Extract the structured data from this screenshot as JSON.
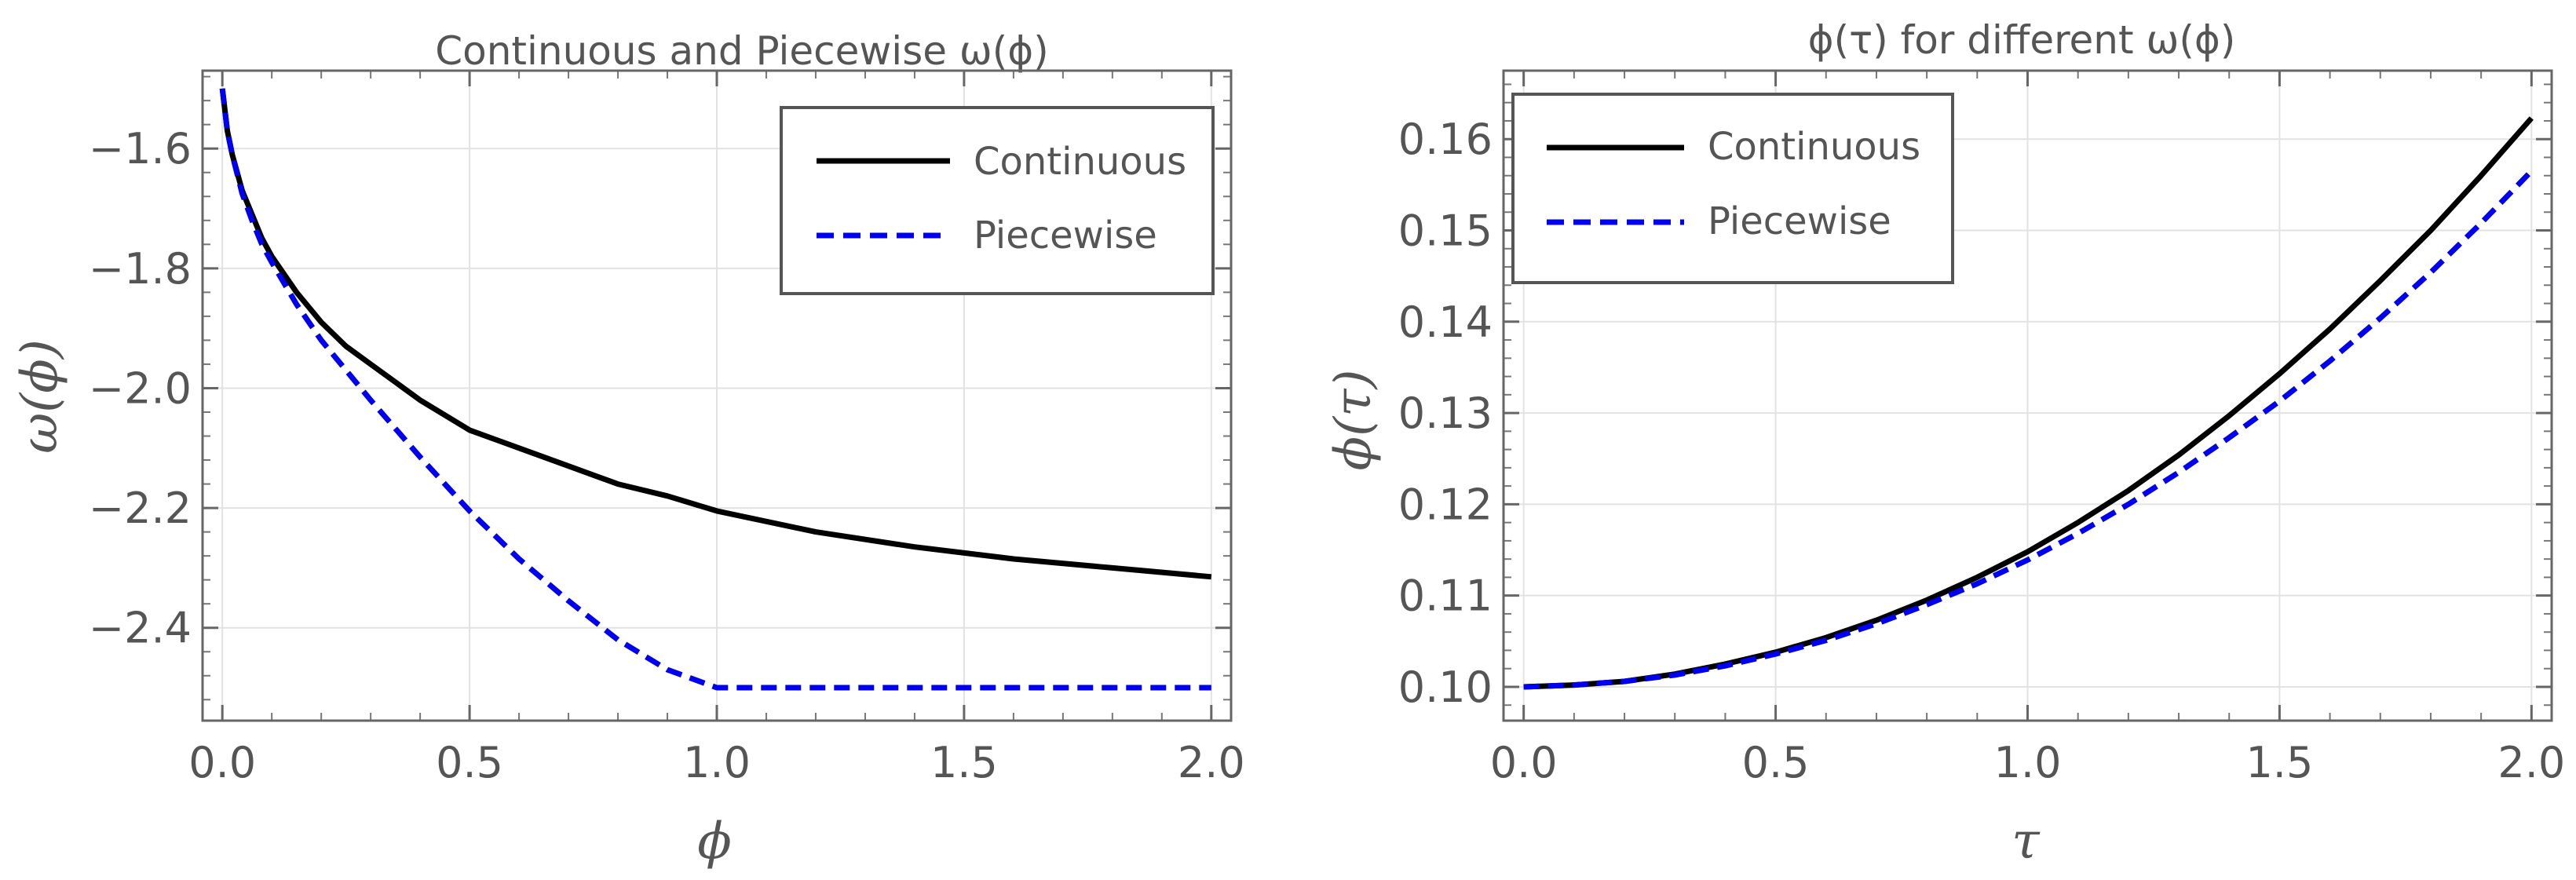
{
  "chart_data": [
    {
      "type": "line",
      "title": "Continuous and Piecewise ω(ϕ)",
      "xlabel": "ϕ",
      "ylabel": "ω(ϕ)",
      "xlim": [
        -0.04,
        2.04
      ],
      "ylim": [
        -2.555,
        -1.47
      ],
      "xticks": [
        0.0,
        0.5,
        1.0,
        1.5,
        2.0
      ],
      "xtick_labels": [
        "0.0",
        "0.5",
        "1.0",
        "1.5",
        "2.0"
      ],
      "yticks": [
        -1.6,
        -1.8,
        -2.0,
        -2.2,
        -2.4
      ],
      "ytick_labels": [
        "−1.6",
        "−1.8",
        "−2.0",
        "−2.2",
        "−2.4"
      ],
      "grid": true,
      "legend_position": "top-right",
      "series": [
        {
          "name": "Continuous",
          "style": "solid",
          "color": "#000000",
          "x": [
            0.0,
            0.01,
            0.02,
            0.04,
            0.06,
            0.08,
            0.1,
            0.15,
            0.2,
            0.25,
            0.3,
            0.4,
            0.5,
            0.6,
            0.7,
            0.8,
            0.9,
            1.0,
            1.2,
            1.4,
            1.6,
            1.8,
            2.0
          ],
          "y": [
            -1.5,
            -1.57,
            -1.61,
            -1.67,
            -1.71,
            -1.75,
            -1.78,
            -1.84,
            -1.89,
            -1.93,
            -1.96,
            -2.02,
            -2.07,
            -2.1,
            -2.13,
            -2.16,
            -2.18,
            -2.205,
            -2.24,
            -2.265,
            -2.285,
            -2.3,
            -2.315
          ]
        },
        {
          "name": "Piecewise",
          "style": "dashed",
          "color": "#0000ee",
          "x": [
            0.0,
            0.01,
            0.02,
            0.04,
            0.06,
            0.08,
            0.1,
            0.15,
            0.2,
            0.3,
            0.4,
            0.5,
            0.6,
            0.7,
            0.8,
            0.9,
            1.0,
            1.5,
            2.0
          ],
          "y": [
            -1.5,
            -1.57,
            -1.61,
            -1.675,
            -1.72,
            -1.76,
            -1.79,
            -1.86,
            -1.92,
            -2.02,
            -2.115,
            -2.205,
            -2.285,
            -2.355,
            -2.42,
            -2.47,
            -2.5,
            -2.5,
            -2.5
          ]
        }
      ]
    },
    {
      "type": "line",
      "title": "ϕ(τ) for different ω(ϕ)",
      "xlabel": "τ",
      "ylabel": "ϕ(τ)",
      "xlim": [
        -0.04,
        2.04
      ],
      "ylim": [
        0.0963,
        0.1675
      ],
      "xticks": [
        0.0,
        0.5,
        1.0,
        1.5,
        2.0
      ],
      "xtick_labels": [
        "0.0",
        "0.5",
        "1.0",
        "1.5",
        "2.0"
      ],
      "yticks": [
        0.1,
        0.11,
        0.12,
        0.13,
        0.14,
        0.15,
        0.16
      ],
      "ytick_labels": [
        "0.10",
        "0.11",
        "0.12",
        "0.13",
        "0.14",
        "0.15",
        "0.16"
      ],
      "grid": true,
      "legend_position": "top-left",
      "series": [
        {
          "name": "Continuous",
          "style": "solid",
          "color": "#000000",
          "x": [
            0.0,
            0.1,
            0.2,
            0.3,
            0.4,
            0.5,
            0.6,
            0.7,
            0.8,
            0.9,
            1.0,
            1.1,
            1.2,
            1.3,
            1.4,
            1.5,
            1.6,
            1.7,
            1.8,
            1.9,
            2.0
          ],
          "y": [
            0.1,
            0.1002,
            0.1006,
            0.1014,
            0.1025,
            0.1038,
            0.1054,
            0.1073,
            0.1095,
            0.112,
            0.1148,
            0.118,
            0.1215,
            0.1254,
            0.1297,
            0.1343,
            0.1392,
            0.1445,
            0.15,
            0.156,
            0.1623
          ]
        },
        {
          "name": "Piecewise",
          "style": "dashed",
          "color": "#0000ee",
          "x": [
            0.0,
            0.1,
            0.2,
            0.3,
            0.4,
            0.5,
            0.6,
            0.7,
            0.8,
            0.9,
            1.0,
            1.1,
            1.2,
            1.3,
            1.4,
            1.5,
            1.6,
            1.7,
            1.8,
            1.9,
            2.0
          ],
          "y": [
            0.1,
            0.1002,
            0.1006,
            0.1013,
            0.1023,
            0.1036,
            0.1051,
            0.1069,
            0.109,
            0.1113,
            0.1139,
            0.1168,
            0.12,
            0.1235,
            0.1273,
            0.1313,
            0.1357,
            0.1404,
            0.1454,
            0.1508,
            0.1565
          ]
        }
      ]
    }
  ]
}
